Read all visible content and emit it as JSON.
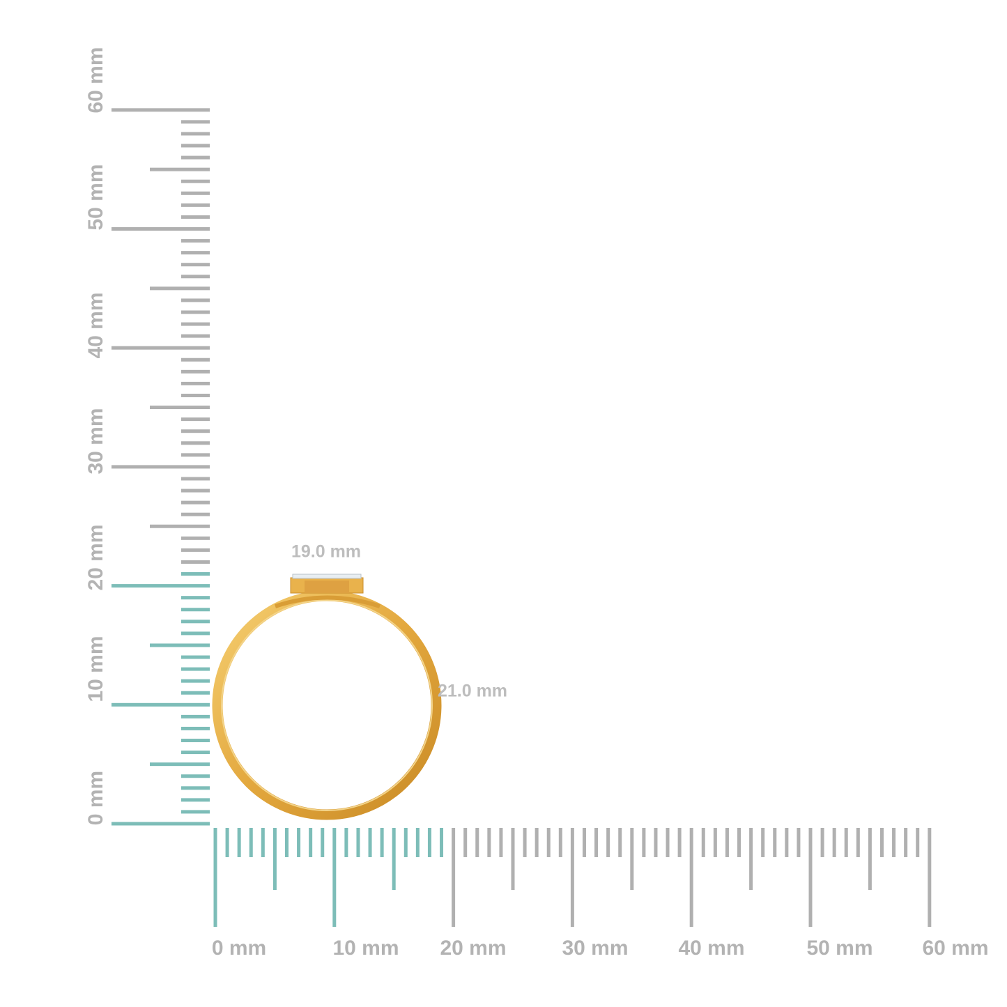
{
  "rulers": {
    "vertical_labels": [
      "0 mm",
      "10 mm",
      "20 mm",
      "30 mm",
      "40 mm",
      "50 mm",
      "60 mm"
    ],
    "horizontal_labels": [
      "0 mm",
      "10 mm",
      "20 mm",
      "30 mm",
      "40 mm",
      "50 mm",
      "60 mm"
    ],
    "range_mm": [
      0,
      60
    ],
    "vertical_highlight_mm": 21,
    "horizontal_highlight_mm": 19,
    "colors": {
      "highlight": "#7dbdb8",
      "default": "#b0b0b0"
    }
  },
  "ring": {
    "width_label": "19.0 mm",
    "height_label": "21.0 mm",
    "metal_color": "#e6b04a"
  }
}
